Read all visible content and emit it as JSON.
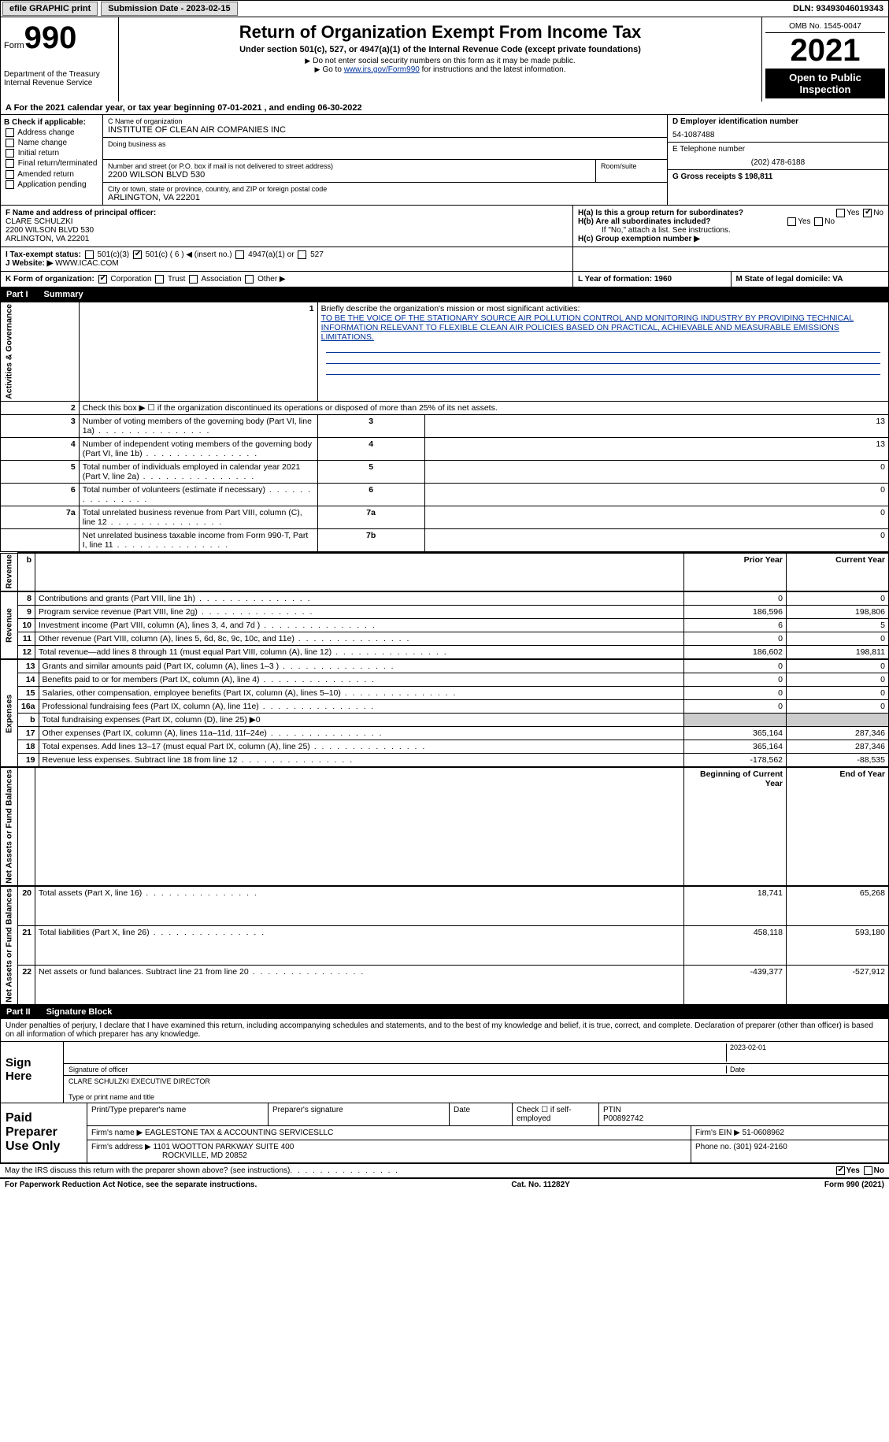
{
  "top": {
    "efile": "efile GRAPHIC print",
    "sub_label": "Submission Date - 2023-02-15",
    "dln": "DLN: 93493046019343"
  },
  "header": {
    "form_word": "Form",
    "form_num": "990",
    "dept": "Department of the Treasury",
    "irs": "Internal Revenue Service",
    "title": "Return of Organization Exempt From Income Tax",
    "sub1": "Under section 501(c), 527, or 4947(a)(1) of the Internal Revenue Code (except private foundations)",
    "sub2": "Do not enter social security numbers on this form as it may be made public.",
    "sub3_pre": "Go to ",
    "sub3_link": "www.irs.gov/Form990",
    "sub3_post": " for instructions and the latest information.",
    "omb": "OMB No. 1545-0047",
    "year": "2021",
    "open": "Open to Public Inspection"
  },
  "a_line": "A For the 2021 calendar year, or tax year beginning 07-01-2021    , and ending 06-30-2022",
  "b": {
    "title": "B Check if applicable:",
    "items": [
      "Address change",
      "Name change",
      "Initial return",
      "Final return/terminated",
      "Amended return",
      "Application pending"
    ]
  },
  "c": {
    "name_label": "C Name of organization",
    "name": "INSTITUTE OF CLEAN AIR COMPANIES INC",
    "dba_label": "Doing business as",
    "addr_label": "Number and street (or P.O. box if mail is not delivered to street address)",
    "room_label": "Room/suite",
    "addr": "2200 WILSON BLVD 530",
    "city_label": "City or town, state or province, country, and ZIP or foreign postal code",
    "city": "ARLINGTON, VA  22201"
  },
  "d": {
    "ein_label": "D Employer identification number",
    "ein": "54-1087488",
    "tel_label": "E Telephone number",
    "tel": "(202) 478-6188",
    "g_label": "G Gross receipts $ 198,811"
  },
  "f": {
    "label": "F  Name and address of principal officer:",
    "name": "CLARE SCHULZKI",
    "addr1": "2200 WILSON BLVD 530",
    "addr2": "ARLINGTON, VA  22201"
  },
  "h": {
    "a": "H(a)  Is this a group return for subordinates?",
    "b": "H(b)  Are all subordinates included?",
    "b_note": "If \"No,\" attach a list. See instructions.",
    "c": "H(c)  Group exemption number ▶",
    "yes": "Yes",
    "no": "No"
  },
  "i": {
    "label": "I    Tax-exempt status:",
    "c3": "501(c)(3)",
    "c": "501(c) ( 6 ) ◀ (insert no.)",
    "a1": "4947(a)(1) or",
    "s527": "527"
  },
  "j": {
    "label": "J   Website: ▶",
    "val": "WWW.ICAC.COM"
  },
  "k": {
    "label": "K Form of organization:",
    "corp": "Corporation",
    "trust": "Trust",
    "assoc": "Association",
    "other": "Other ▶"
  },
  "l": {
    "label": "L Year of formation: 1960"
  },
  "m": {
    "label": "M State of legal domicile: VA"
  },
  "partI": {
    "num": "Part I",
    "title": "Summary"
  },
  "summary": {
    "vert_ag": "Activities & Governance",
    "vert_rev": "Revenue",
    "vert_exp": "Expenses",
    "vert_net": "Net Assets or Fund Balances",
    "l1": "Briefly describe the organization's mission or most significant activities:",
    "l1_text": "TO BE THE VOICE OF THE STATIONARY SOURCE AIR POLLUTION CONTROL AND MONITORING INDUSTRY BY PROVIDING TECHNICAL INFORMATION RELEVANT TO FLEXIBLE CLEAN AIR POLICIES BASED ON PRACTICAL, ACHIEVABLE AND MEASURABLE EMISSIONS LIMITATIONS.",
    "l2": "Check this box ▶ ☐  if the organization discontinued its operations or disposed of more than 25% of its net assets.",
    "rows_ag": [
      {
        "n": "3",
        "label": "Number of voting members of the governing body (Part VI, line 1a)",
        "box": "3",
        "val": "13"
      },
      {
        "n": "4",
        "label": "Number of independent voting members of the governing body (Part VI, line 1b)",
        "box": "4",
        "val": "13"
      },
      {
        "n": "5",
        "label": "Total number of individuals employed in calendar year 2021 (Part V, line 2a)",
        "box": "5",
        "val": "0"
      },
      {
        "n": "6",
        "label": "Total number of volunteers (estimate if necessary)",
        "box": "6",
        "val": "0"
      },
      {
        "n": "7a",
        "label": "Total unrelated business revenue from Part VIII, column (C), line 12",
        "box": "7a",
        "val": "0"
      },
      {
        "n": "",
        "label": "Net unrelated business taxable income from Form 990-T, Part I, line 11",
        "box": "7b",
        "val": "0"
      }
    ],
    "col_prior": "Prior Year",
    "col_current": "Current Year",
    "rows_rev": [
      {
        "n": "8",
        "label": "Contributions and grants (Part VIII, line 1h)",
        "p": "0",
        "c": "0"
      },
      {
        "n": "9",
        "label": "Program service revenue (Part VIII, line 2g)",
        "p": "186,596",
        "c": "198,806"
      },
      {
        "n": "10",
        "label": "Investment income (Part VIII, column (A), lines 3, 4, and 7d )",
        "p": "6",
        "c": "5"
      },
      {
        "n": "11",
        "label": "Other revenue (Part VIII, column (A), lines 5, 6d, 8c, 9c, 10c, and 11e)",
        "p": "0",
        "c": "0"
      },
      {
        "n": "12",
        "label": "Total revenue—add lines 8 through 11 (must equal Part VIII, column (A), line 12)",
        "p": "186,602",
        "c": "198,811"
      }
    ],
    "rows_exp": [
      {
        "n": "13",
        "label": "Grants and similar amounts paid (Part IX, column (A), lines 1–3 )",
        "p": "0",
        "c": "0"
      },
      {
        "n": "14",
        "label": "Benefits paid to or for members (Part IX, column (A), line 4)",
        "p": "0",
        "c": "0"
      },
      {
        "n": "15",
        "label": "Salaries, other compensation, employee benefits (Part IX, column (A), lines 5–10)",
        "p": "0",
        "c": "0"
      },
      {
        "n": "16a",
        "label": "Professional fundraising fees (Part IX, column (A), line 11e)",
        "p": "0",
        "c": "0"
      },
      {
        "n": "b",
        "label": "Total fundraising expenses (Part IX, column (D), line 25) ▶0",
        "p": "shaded",
        "c": "shaded"
      },
      {
        "n": "17",
        "label": "Other expenses (Part IX, column (A), lines 11a–11d, 11f–24e)",
        "p": "365,164",
        "c": "287,346"
      },
      {
        "n": "18",
        "label": "Total expenses. Add lines 13–17 (must equal Part IX, column (A), line 25)",
        "p": "365,164",
        "c": "287,346"
      },
      {
        "n": "19",
        "label": "Revenue less expenses. Subtract line 18 from line 12",
        "p": "-178,562",
        "c": "-88,535"
      }
    ],
    "col_begin": "Beginning of Current Year",
    "col_end": "End of Year",
    "rows_net": [
      {
        "n": "20",
        "label": "Total assets (Part X, line 16)",
        "p": "18,741",
        "c": "65,268"
      },
      {
        "n": "21",
        "label": "Total liabilities (Part X, line 26)",
        "p": "458,118",
        "c": "593,180"
      },
      {
        "n": "22",
        "label": "Net assets or fund balances. Subtract line 21 from line 20",
        "p": "-439,377",
        "c": "-527,912"
      }
    ]
  },
  "partII": {
    "num": "Part II",
    "title": "Signature Block"
  },
  "sig": {
    "penalty": "Under penalties of perjury, I declare that I have examined this return, including accompanying schedules and statements, and to the best of my knowledge and belief, it is true, correct, and complete. Declaration of preparer (other than officer) is based on all information of which preparer has any knowledge.",
    "sign_here": "Sign Here",
    "sig_officer": "Signature of officer",
    "date": "Date",
    "sig_date": "2023-02-01",
    "name_title": "CLARE SCHULZKI  EXECUTIVE DIRECTOR",
    "type_name": "Type or print name and title",
    "paid": "Paid Preparer Use Only",
    "pt_name": "Print/Type preparer's name",
    "p_sig": "Preparer's signature",
    "p_date": "Date",
    "check_if": "Check ☐ if self-employed",
    "ptin_label": "PTIN",
    "ptin": "P00892742",
    "firm_name_l": "Firm's name      ▶",
    "firm_name": "EAGLESTONE TAX & ACCOUNTING SERVICESLLC",
    "firm_ein_l": "Firm's EIN ▶",
    "firm_ein": "51-0608962",
    "firm_addr_l": "Firm's address ▶",
    "firm_addr1": "1101 WOOTTON PARKWAY SUITE 400",
    "firm_addr2": "ROCKVILLE, MD  20852",
    "phone_l": "Phone no.",
    "phone": "(301) 924-2160",
    "may_irs": "May the IRS discuss this return with the preparer shown above? (see instructions)"
  },
  "footer": {
    "pra": "For Paperwork Reduction Act Notice, see the separate instructions.",
    "cat": "Cat. No. 11282Y",
    "form": "Form 990 (2021)"
  }
}
